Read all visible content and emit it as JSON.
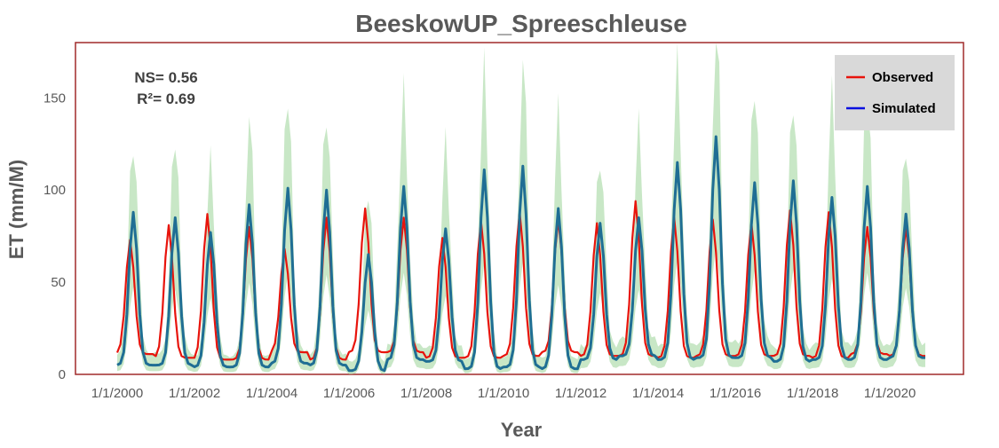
{
  "chart_data": {
    "type": "line",
    "title": "BeeskowUP_Spreeschleuse",
    "xlabel": "Year",
    "ylabel": "ET (mm/M)",
    "x_range": [
      "2000-01",
      "2020-12"
    ],
    "ylim": [
      0,
      180
    ],
    "y_ticks": [
      0,
      50,
      100,
      150
    ],
    "x_tick_labels": [
      "1/1/2000",
      "1/1/2002",
      "1/1/2004",
      "1/1/2006",
      "1/1/2008",
      "1/1/2010",
      "1/1/2012",
      "1/1/2014",
      "1/1/2016",
      "1/1/2018",
      "1/1/2020"
    ],
    "grid": false,
    "legend_position": "top-right",
    "annotations": {
      "ns": "NS= 0.56",
      "r2": "R²= 0.69"
    },
    "colors": {
      "observed": "#e8140c",
      "simulated": "#0a10e0",
      "simulated_line": "#1f6e94",
      "band": "#b6dfb3",
      "frame": "#a02a2a"
    },
    "band_label": "",
    "series": [
      {
        "name": "Observed",
        "peak_month": [
          5,
          5,
          5,
          6,
          5,
          6,
          6,
          6,
          6,
          6,
          6,
          6,
          6,
          6,
          6,
          6,
          6,
          6,
          6,
          6,
          6
        ],
        "peaks": [
          73,
          81,
          87,
          80,
          68,
          85,
          90,
          85,
          74,
          83,
          88,
          84,
          82,
          94,
          85,
          84,
          82,
          89,
          88,
          80,
          80
        ],
        "troughs": [
          11,
          9,
          8,
          8,
          12,
          8,
          12,
          12,
          9,
          9,
          10,
          12,
          10,
          10,
          9,
          10,
          10,
          10,
          9,
          11,
          10
        ]
      },
      {
        "name": "Simulated",
        "peak_month": [
          6,
          7,
          6,
          6,
          6,
          6,
          7,
          6,
          7,
          7,
          7,
          6,
          7,
          7,
          7,
          7,
          7,
          7,
          7,
          6,
          6
        ],
        "peaks": [
          88,
          85,
          77,
          92,
          101,
          100,
          65,
          102,
          79,
          111,
          113,
          90,
          82,
          85,
          115,
          129,
          104,
          105,
          96,
          102,
          87
        ],
        "troughs": [
          5,
          5,
          4,
          4,
          6,
          5,
          2,
          8,
          7,
          3,
          4,
          3,
          8,
          10,
          8,
          9,
          9,
          7,
          8,
          8,
          9
        ]
      }
    ]
  }
}
